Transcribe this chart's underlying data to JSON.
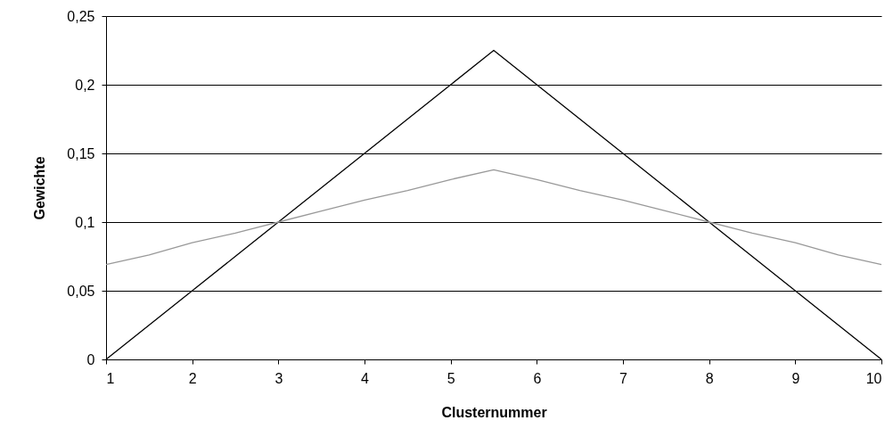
{
  "chart_data": {
    "type": "line",
    "xlabel": "Clusternummer",
    "ylabel": "Gewichte",
    "x": [
      1,
      1.5,
      2,
      2.5,
      3,
      3.5,
      4,
      4.5,
      5,
      5.5,
      6,
      6.5,
      7,
      7.5,
      8,
      8.5,
      9,
      9.5,
      10
    ],
    "series": [
      {
        "color": "#000000",
        "values": [
          0,
          0.025,
          0.05,
          0.075,
          0.1,
          0.125,
          0.15,
          0.175,
          0.2,
          0.225,
          0.2,
          0.175,
          0.15,
          0.125,
          0.1,
          0.075,
          0.05,
          0.025,
          0
        ]
      },
      {
        "color": "#999999",
        "values": [
          0.069,
          0.076,
          0.085,
          0.092,
          0.1,
          0.108,
          0.116,
          0.123,
          0.131,
          0.138,
          0.131,
          0.123,
          0.116,
          0.108,
          0.1,
          0.092,
          0.085,
          0.076,
          0.069
        ]
      }
    ],
    "xlim": [
      1,
      10
    ],
    "xticks": [
      1,
      2,
      3,
      4,
      5,
      6,
      7,
      8,
      9,
      10
    ],
    "ylim": [
      0,
      0.25
    ],
    "yticks": [
      0,
      {
        "value": 0.05,
        "label": "0,05"
      },
      {
        "value": 0.1,
        "label": "0,1"
      },
      {
        "value": 0.15,
        "label": "0,15"
      },
      {
        "value": 0.2,
        "label": "0,2"
      },
      {
        "value": 0.25,
        "label": "0,25"
      }
    ],
    "grid": "y",
    "marker": "none",
    "line_style": "solid"
  }
}
